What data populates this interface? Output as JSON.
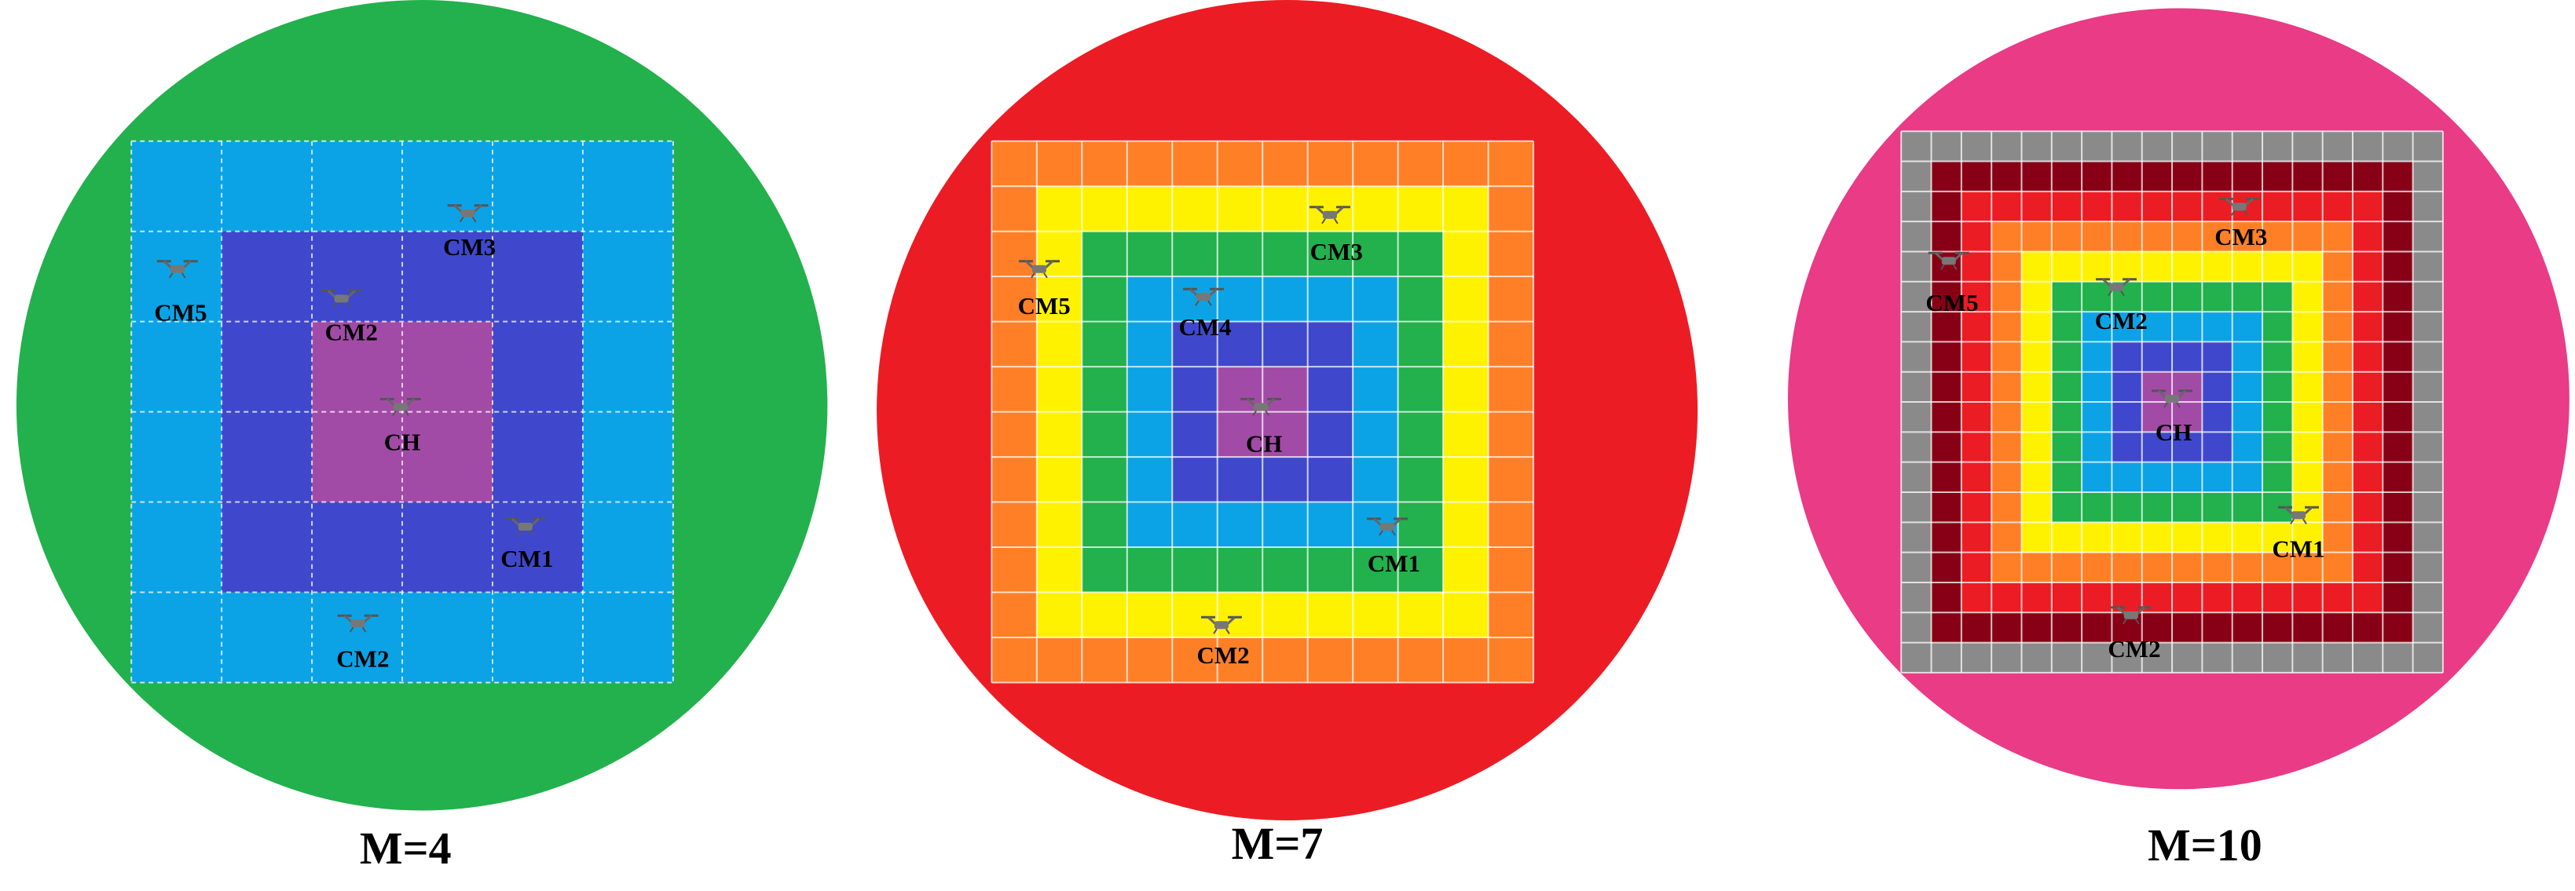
{
  "panels": [
    {
      "caption": "M=4",
      "drones": [
        "CM3",
        "CM5",
        "CM2",
        "CH",
        "CM1",
        "CM2"
      ]
    },
    {
      "caption": "M=7",
      "drones": [
        "CM3",
        "CM5",
        "CM4",
        "CH",
        "CM1",
        "CM2"
      ]
    },
    {
      "caption": "M=10",
      "drones": [
        "CM3",
        "CM5",
        "CM2",
        "CH",
        "CM1",
        "CM2"
      ]
    }
  ]
}
